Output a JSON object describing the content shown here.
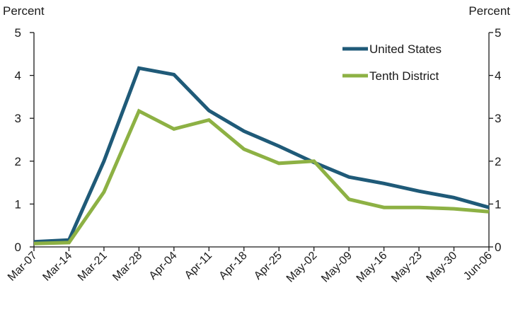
{
  "chart_data": {
    "type": "line",
    "categories": [
      "Mar-07",
      "Mar-14",
      "Mar-21",
      "Mar-28",
      "Apr-04",
      "Apr-11",
      "Apr-18",
      "Apr-25",
      "May-02",
      "May-09",
      "May-16",
      "May-23",
      "May-30",
      "Jun-06"
    ],
    "series": [
      {
        "name": "United States",
        "color": "#1f5a78",
        "values": [
          0.12,
          0.16,
          2.0,
          4.17,
          4.02,
          3.18,
          2.7,
          2.35,
          1.97,
          1.63,
          1.48,
          1.3,
          1.15,
          0.92
        ]
      },
      {
        "name": "Tenth District",
        "color": "#8db144",
        "values": [
          0.08,
          0.1,
          1.28,
          3.17,
          2.75,
          2.96,
          2.28,
          1.95,
          2.0,
          1.11,
          0.92,
          0.92,
          0.89,
          0.82
        ]
      }
    ],
    "ylabel_left": "Percent",
    "ylabel_right": "Percent",
    "ylim": [
      0,
      5
    ],
    "yticks": [
      0,
      1,
      2,
      3,
      4,
      5
    ],
    "grid": false,
    "legend_position": "top-right"
  }
}
